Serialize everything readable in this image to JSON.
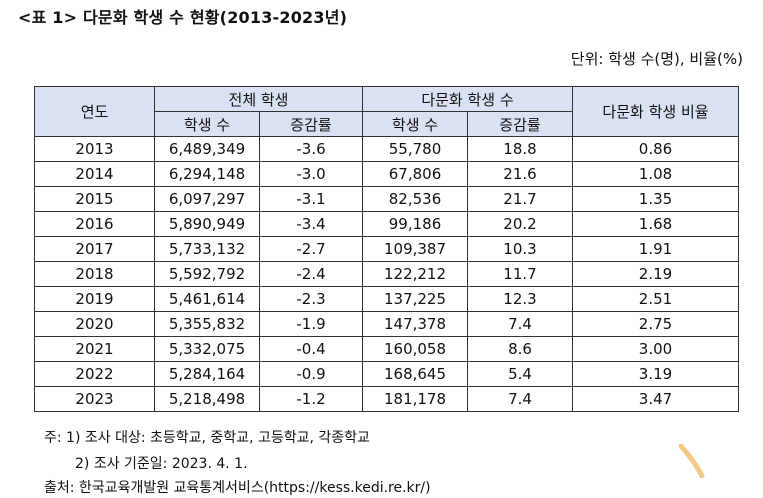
{
  "title": "<표 1> 다문화 학생 수 현황(2013-2023년)",
  "unit": "단위: 학생 수(명), 비율(%)",
  "table": {
    "header": {
      "year": "연도",
      "total_group": "전체 학생",
      "multi_group": "다문화 학생 수",
      "ratio": "다문화 학생 비율",
      "count": "학생 수",
      "rate": "증감률",
      "count2": "학생 수",
      "rate2": "증감률"
    },
    "rows": [
      [
        "2013",
        "6,489,349",
        "-3.6",
        "55,780",
        "18.8",
        "0.86"
      ],
      [
        "2014",
        "6,294,148",
        "-3.0",
        "67,806",
        "21.6",
        "1.08"
      ],
      [
        "2015",
        "6,097,297",
        "-3.1",
        "82,536",
        "21.7",
        "1.35"
      ],
      [
        "2016",
        "5,890,949",
        "-3.4",
        "99,186",
        "20.2",
        "1.68"
      ],
      [
        "2017",
        "5,733,132",
        "-2.7",
        "109,387",
        "10.3",
        "1.91"
      ],
      [
        "2018",
        "5,592,792",
        "-2.4",
        "122,212",
        "11.7",
        "2.19"
      ],
      [
        "2019",
        "5,461,614",
        "-2.3",
        "137,225",
        "12.3",
        "2.51"
      ],
      [
        "2020",
        "5,355,832",
        "-1.9",
        "147,378",
        "7.4",
        "2.75"
      ],
      [
        "2021",
        "5,332,075",
        "-0.4",
        "160,058",
        "8.6",
        "3.00"
      ],
      [
        "2022",
        "5,284,164",
        "-0.9",
        "168,645",
        "5.4",
        "3.19"
      ],
      [
        "2023",
        "5,218,498",
        "-1.2",
        "181,178",
        "7.4",
        "3.47"
      ]
    ]
  },
  "notes": [
    "주: 1) 조사 대상: 초등학교, 중학교, 고등학교, 각종학교",
    "2) 조사 기준일: 2023. 4. 1."
  ],
  "source": "출처: 한국교육개발원 교육통계서비스(https://kess.kedi.re.kr/)",
  "colors": {
    "header_bg": "#d9e1f2",
    "border": "#333333",
    "decoration": "#f0c070"
  }
}
